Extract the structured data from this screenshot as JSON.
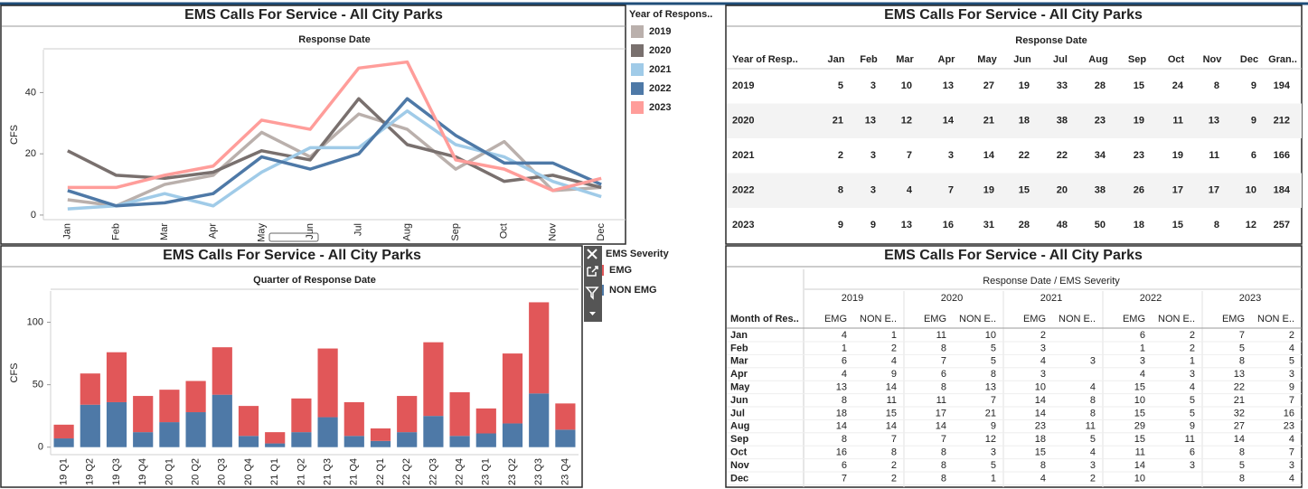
{
  "chart_data": [
    {
      "type": "line",
      "title": "EMS Calls For Service - All City Parks",
      "header": "Response Date",
      "y_label": "CFS",
      "legend_title": "Year of Respons..",
      "categories": [
        "Jan",
        "Feb",
        "Mar",
        "Apr",
        "May",
        "Jun",
        "Jul",
        "Aug",
        "Sep",
        "Oct",
        "Nov",
        "Dec"
      ],
      "series": [
        {
          "name": "2019",
          "color": "#bab0ac",
          "values": [
            5,
            3,
            10,
            13,
            27,
            19,
            33,
            28,
            15,
            24,
            8,
            9
          ]
        },
        {
          "name": "2020",
          "color": "#79706e",
          "values": [
            21,
            13,
            12,
            14,
            21,
            18,
            38,
            23,
            19,
            11,
            13,
            9
          ]
        },
        {
          "name": "2021",
          "color": "#a0cbe8",
          "values": [
            2,
            3,
            7,
            3,
            14,
            22,
            22,
            34,
            23,
            19,
            11,
            6
          ]
        },
        {
          "name": "2022",
          "color": "#4e79a7",
          "values": [
            8,
            3,
            4,
            7,
            19,
            15,
            20,
            38,
            26,
            17,
            17,
            10
          ]
        },
        {
          "name": "2023",
          "color": "#ff9d9a",
          "values": [
            9,
            9,
            13,
            16,
            31,
            28,
            48,
            50,
            18,
            15,
            8,
            12
          ]
        }
      ],
      "ylim": [
        -1.5,
        54
      ],
      "yticks": [
        0,
        20,
        40
      ]
    },
    {
      "type": "bar",
      "stacked": true,
      "title": "EMS Calls For Service - All City Parks",
      "header": "Quarter of Response Date",
      "y_label": "CFS",
      "legend_title": "EMS Severity",
      "categories": [
        "19 Q1",
        "19 Q2",
        "19 Q3",
        "19 Q4",
        "20 Q1",
        "20 Q2",
        "20 Q3",
        "20 Q4",
        "21 Q1",
        "21 Q2",
        "21 Q3",
        "21 Q4",
        "22 Q1",
        "22 Q2",
        "22 Q3",
        "22 Q4",
        "23 Q1",
        "23 Q2",
        "23 Q3",
        "23 Q4"
      ],
      "series": [
        {
          "name": "EMG",
          "color": "#e15759",
          "values": [
            11,
            25,
            40,
            29,
            26,
            25,
            38,
            24,
            9,
            27,
            55,
            27,
            10,
            29,
            59,
            35,
            20,
            56,
            73,
            21
          ]
        },
        {
          "name": "NON EMG",
          "color": "#4e79a7",
          "values": [
            7,
            34,
            36,
            12,
            20,
            28,
            42,
            9,
            3,
            12,
            24,
            9,
            5,
            12,
            25,
            9,
            11,
            19,
            43,
            14
          ]
        }
      ],
      "ylim": [
        -6,
        125
      ],
      "yticks": [
        0,
        50,
        100
      ]
    }
  ],
  "tables": [
    {
      "title": "EMS Calls For Service - All City Parks",
      "header": "Response Date",
      "row_header": "Year of Resp..",
      "columns": [
        "Jan",
        "Feb",
        "Mar",
        "Apr",
        "May",
        "Jun",
        "Jul",
        "Aug",
        "Sep",
        "Oct",
        "Nov",
        "Dec",
        "Gran.."
      ],
      "rows": [
        {
          "label": "2019",
          "values": [
            5,
            3,
            10,
            13,
            27,
            19,
            33,
            28,
            15,
            24,
            8,
            9,
            194
          ]
        },
        {
          "label": "2020",
          "values": [
            21,
            13,
            12,
            14,
            21,
            18,
            38,
            23,
            19,
            11,
            13,
            9,
            212
          ]
        },
        {
          "label": "2021",
          "values": [
            2,
            3,
            7,
            3,
            14,
            22,
            22,
            34,
            23,
            19,
            11,
            6,
            166
          ]
        },
        {
          "label": "2022",
          "values": [
            8,
            3,
            4,
            7,
            19,
            15,
            20,
            38,
            26,
            17,
            17,
            10,
            184
          ]
        },
        {
          "label": "2023",
          "values": [
            9,
            9,
            13,
            16,
            31,
            28,
            48,
            50,
            18,
            15,
            8,
            12,
            257
          ]
        }
      ]
    },
    {
      "title": "EMS Calls For Service - All City Parks",
      "header": "Response Date  /  EMS Severity",
      "row_header": "Month of Res..",
      "years": [
        "2019",
        "2020",
        "2021",
        "2022",
        "2023"
      ],
      "subcolumns": [
        "EMG",
        "NON E.."
      ],
      "rows": [
        {
          "label": "Jan",
          "values": [
            [
              4,
              1
            ],
            [
              11,
              10
            ],
            [
              2,
              null
            ],
            [
              6,
              2
            ],
            [
              7,
              2
            ]
          ]
        },
        {
          "label": "Feb",
          "values": [
            [
              1,
              2
            ],
            [
              8,
              5
            ],
            [
              3,
              null
            ],
            [
              1,
              2
            ],
            [
              5,
              4
            ]
          ]
        },
        {
          "label": "Mar",
          "values": [
            [
              6,
              4
            ],
            [
              7,
              5
            ],
            [
              4,
              3
            ],
            [
              3,
              1
            ],
            [
              8,
              5
            ]
          ]
        },
        {
          "label": "Apr",
          "values": [
            [
              4,
              9
            ],
            [
              6,
              8
            ],
            [
              3,
              null
            ],
            [
              4,
              3
            ],
            [
              13,
              3
            ]
          ]
        },
        {
          "label": "May",
          "values": [
            [
              13,
              14
            ],
            [
              8,
              13
            ],
            [
              10,
              4
            ],
            [
              15,
              4
            ],
            [
              22,
              9
            ]
          ]
        },
        {
          "label": "Jun",
          "values": [
            [
              8,
              11
            ],
            [
              11,
              7
            ],
            [
              14,
              8
            ],
            [
              10,
              5
            ],
            [
              21,
              7
            ]
          ]
        },
        {
          "label": "Jul",
          "values": [
            [
              18,
              15
            ],
            [
              17,
              21
            ],
            [
              14,
              8
            ],
            [
              15,
              5
            ],
            [
              32,
              16
            ]
          ]
        },
        {
          "label": "Aug",
          "values": [
            [
              14,
              14
            ],
            [
              14,
              9
            ],
            [
              23,
              11
            ],
            [
              29,
              9
            ],
            [
              27,
              23
            ]
          ]
        },
        {
          "label": "Sep",
          "values": [
            [
              8,
              7
            ],
            [
              7,
              12
            ],
            [
              18,
              5
            ],
            [
              15,
              11
            ],
            [
              14,
              4
            ]
          ]
        },
        {
          "label": "Oct",
          "values": [
            [
              16,
              8
            ],
            [
              8,
              3
            ],
            [
              15,
              4
            ],
            [
              11,
              6
            ],
            [
              8,
              7
            ]
          ]
        },
        {
          "label": "Nov",
          "values": [
            [
              6,
              2
            ],
            [
              8,
              5
            ],
            [
              8,
              3
            ],
            [
              14,
              3
            ],
            [
              5,
              3
            ]
          ]
        },
        {
          "label": "Dec",
          "values": [
            [
              7,
              2
            ],
            [
              8,
              1
            ],
            [
              4,
              2
            ],
            [
              10,
              null
            ],
            [
              8,
              4
            ]
          ]
        }
      ]
    }
  ]
}
